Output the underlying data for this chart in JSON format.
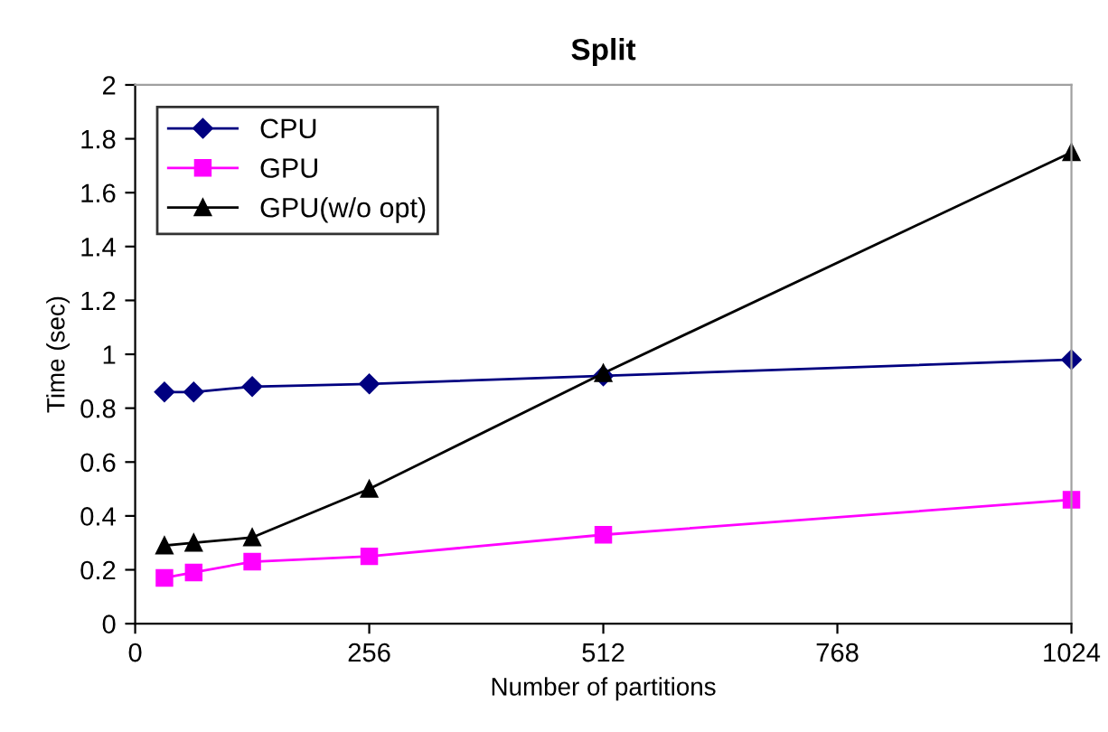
{
  "chart_data": {
    "type": "line",
    "title": "Split",
    "xlabel": "Number of partitions",
    "ylabel": "Time (sec)",
    "x": [
      32,
      64,
      128,
      256,
      512,
      1024
    ],
    "series": [
      {
        "name": "CPU",
        "color": "#000080",
        "marker": "diamond",
        "values": [
          0.86,
          0.86,
          0.88,
          0.89,
          0.92,
          0.98
        ]
      },
      {
        "name": "GPU",
        "color": "#ff00ff",
        "marker": "square",
        "values": [
          0.17,
          0.19,
          0.23,
          0.25,
          0.33,
          0.46
        ]
      },
      {
        "name": "GPU(w/o opt)",
        "color": "#000000",
        "marker": "triangle",
        "values": [
          0.29,
          0.3,
          0.32,
          0.5,
          0.93,
          1.75
        ]
      }
    ],
    "xlim": [
      0,
      1024
    ],
    "xticks": [
      0,
      256,
      512,
      768,
      1024
    ],
    "ylim": [
      0,
      2
    ],
    "yticks": [
      0,
      0.2,
      0.4,
      0.6,
      0.8,
      1,
      1.2,
      1.4,
      1.6,
      1.8,
      2
    ],
    "grid": false,
    "legend": "top left",
    "line_style": "solid"
  }
}
